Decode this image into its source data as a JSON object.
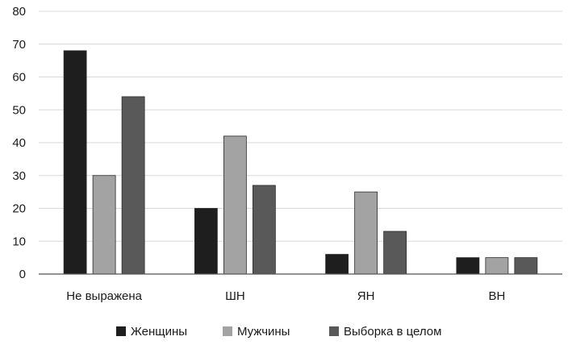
{
  "chart_data": {
    "type": "bar",
    "categories": [
      "Не выражена",
      "ШН",
      "ЯН",
      "ВН"
    ],
    "series": [
      {
        "name": "Женщины",
        "values": [
          68,
          20,
          6,
          5
        ],
        "color": "#1e1e1e"
      },
      {
        "name": "Мужчины",
        "values": [
          30,
          42,
          25,
          5
        ],
        "color": "#a3a3a3"
      },
      {
        "name": "Выборка в целом",
        "values": [
          54,
          27,
          13,
          5
        ],
        "color": "#595959"
      }
    ],
    "ylim": [
      0,
      80
    ],
    "yticks": [
      0,
      10,
      20,
      30,
      40,
      50,
      60,
      70,
      80
    ],
    "grid": true,
    "legend": "bottom"
  }
}
